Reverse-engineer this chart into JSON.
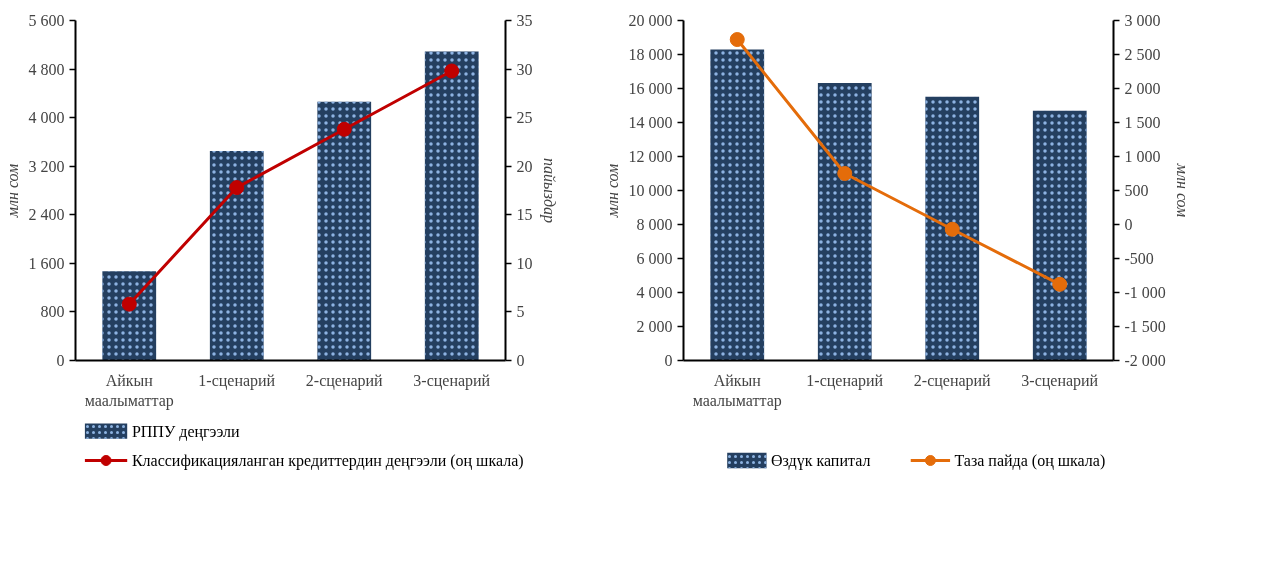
{
  "chart_data": [
    {
      "type": "bar",
      "categories": [
        "Айкын маалыматтар",
        "1-сценарий",
        "2-сценарий",
        "3-сценарий"
      ],
      "ylabel": "млн сом",
      "y2label": "пайыздар",
      "series": [
        {
          "name": "РППУ деңгээли",
          "color": "#243f60",
          "values": [
            1470,
            3450,
            4260,
            5090
          ]
        },
        {
          "name": "Классификацияланган кредиттердин деңгээли (оң шкала)",
          "type": "line",
          "axis": "y2",
          "color": "#c00000",
          "values": [
            5.8,
            17.8,
            23.8,
            29.8
          ]
        }
      ],
      "ylim": [
        0,
        5600
      ],
      "yticks": [
        0,
        800,
        {
          "value": 1600,
          "label": "1 600"
        },
        {
          "value": 2400,
          "label": "2 400"
        },
        {
          "value": 3200,
          "label": "3 200"
        },
        {
          "value": 4000,
          "label": "4 000"
        },
        {
          "value": 4800,
          "label": "4 800"
        },
        {
          "value": 5600,
          "label": "5 600"
        }
      ],
      "y2lim": [
        0,
        35
      ],
      "y2ticks": [
        0,
        5,
        10,
        15,
        20,
        25,
        30,
        35
      ],
      "grid": false,
      "legend": "bottom",
      "marker": "circle"
    },
    {
      "type": "bar",
      "categories": [
        "Айкын маалыматтар",
        "1-сценарий",
        "2-сценарий",
        "3-сценарий"
      ],
      "ylabel": "млн сом",
      "y2label": "млн сом",
      "series": [
        {
          "name": "Өздүк капитал",
          "color": "#243f60",
          "values": [
            18300,
            16330,
            15520,
            14690
          ]
        },
        {
          "name": "Таза пайда (оң шкала)",
          "type": "line",
          "axis": "y2",
          "color": "#e46c0a",
          "values": [
            2720,
            750,
            -70,
            -880
          ]
        }
      ],
      "ylim": [
        0,
        20000
      ],
      "yticks": [
        0,
        {
          "value": 2000,
          "label": "2 000"
        },
        {
          "value": 4000,
          "label": "4 000"
        },
        {
          "value": 6000,
          "label": "6 000"
        },
        {
          "value": 8000,
          "label": "8 000"
        },
        {
          "value": 10000,
          "label": "10 000"
        },
        {
          "value": 12000,
          "label": "12 000"
        },
        {
          "value": 14000,
          "label": "14 000"
        },
        {
          "value": 16000,
          "label": "16 000"
        },
        {
          "value": 18000,
          "label": "18 000"
        },
        {
          "value": 20000,
          "label": "20 000"
        }
      ],
      "y2lim": [
        -2000,
        3000
      ],
      "y2ticks": [
        {
          "value": -2000,
          "label": "-2 000"
        },
        {
          "value": -1500,
          "label": "-1 500"
        },
        {
          "value": -1000,
          "label": "-1 000"
        },
        -500,
        0,
        500,
        {
          "value": 1000,
          "label": "1 000"
        },
        {
          "value": 1500,
          "label": "1 500"
        },
        {
          "value": 2000,
          "label": "2 000"
        },
        {
          "value": 2500,
          "label": "2 500"
        },
        {
          "value": 3000,
          "label": "3 000"
        }
      ],
      "grid": false,
      "legend": "bottom",
      "marker": "circle"
    }
  ]
}
